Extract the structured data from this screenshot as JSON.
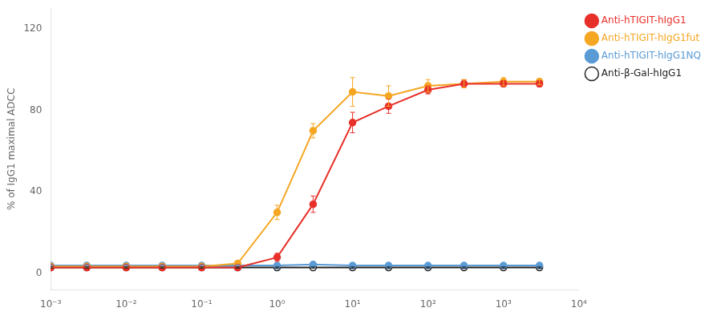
{
  "chart_data": {
    "type": "line",
    "ylabel": "% of IgG1 maximal ADCC",
    "x": [
      0.001,
      0.003,
      0.01,
      0.03,
      0.1,
      0.3,
      1.0,
      3.0,
      10.0,
      30.0,
      100.0,
      300.0,
      1000.0,
      3000.0
    ],
    "series": [
      {
        "name": "Anti-hTIGIT-hIgG1",
        "color": "#e8302a",
        "marker": "circle",
        "line_style": "solid",
        "values": [
          3.0,
          3.0,
          3.0,
          3.0,
          3.0,
          3.0,
          8.0,
          34.0,
          74.0,
          82.0,
          90.0,
          93.0,
          93.0,
          93.0
        ],
        "yerr": [
          0.5,
          0.5,
          0.5,
          0.5,
          0.5,
          0.5,
          2.0,
          4.0,
          5.0,
          3.5,
          2.0,
          2.0,
          1.5,
          1.5
        ]
      },
      {
        "name": "Anti-hTIGIT-hIgG1fut",
        "color": "#f5a623",
        "marker": "circle",
        "line_style": "solid",
        "values": [
          3.5,
          3.5,
          3.5,
          3.5,
          3.5,
          5.0,
          30.0,
          70.0,
          89.0,
          87.0,
          92.0,
          93.0,
          94.0,
          94.0
        ],
        "yerr": [
          0.5,
          0.5,
          0.5,
          0.5,
          0.5,
          1.0,
          3.5,
          3.5,
          7.0,
          5.0,
          3.0,
          2.0,
          2.0,
          1.5
        ]
      },
      {
        "name": "Anti-hTIGIT-hIgG1NQ",
        "color": "#5b9bd5",
        "marker": "circle",
        "line_style": "solid",
        "values": [
          4.0,
          4.0,
          4.0,
          4.0,
          4.0,
          4.0,
          4.0,
          4.5,
          4.0,
          4.0,
          4.0,
          4.0,
          4.0,
          4.0
        ],
        "yerr": [
          0.3,
          0.3,
          0.3,
          0.3,
          0.3,
          0.3,
          0.3,
          0.5,
          0.3,
          0.3,
          0.3,
          0.3,
          0.3,
          0.3
        ]
      },
      {
        "name": "Anti-β-Gal-hIgG1",
        "color": "#222222",
        "marker": "circle_open",
        "line_style": "solid",
        "values": [
          3.0,
          3.0,
          3.0,
          3.0,
          3.0,
          3.0,
          3.0,
          3.0,
          3.0,
          3.0,
          3.0,
          3.0,
          3.0,
          3.0
        ],
        "yerr": [
          0.3,
          0.3,
          0.3,
          0.3,
          0.3,
          0.3,
          0.3,
          0.3,
          0.3,
          0.3,
          0.3,
          0.3,
          0.3,
          0.3
        ]
      }
    ],
    "log": "x",
    "xlim": [
      0.001,
      10000
    ],
    "xticks": [
      {
        "value": 0.001,
        "label": "10⁻³"
      },
      {
        "value": 0.01,
        "label": "10⁻²"
      },
      {
        "value": 0.1,
        "label": "10⁻¹"
      },
      {
        "value": 1,
        "label": "10⁰"
      },
      {
        "value": 10,
        "label": "10¹"
      },
      {
        "value": 100,
        "label": "10²"
      },
      {
        "value": 1000,
        "label": "10³"
      },
      {
        "value": 10000,
        "label": "10⁴"
      }
    ],
    "ylim": [
      -8,
      130
    ],
    "yticks": [
      0,
      40,
      80,
      120
    ],
    "grid": false,
    "legend": "upper right"
  }
}
